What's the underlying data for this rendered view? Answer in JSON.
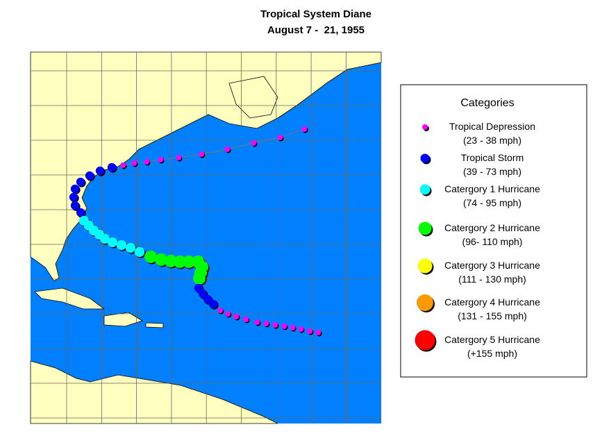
{
  "title": "Tropical System Diane",
  "subtitle": "August 7 -  21, 1955",
  "legend": {
    "title": "Categories",
    "items": [
      {
        "name": "Tropical Depression",
        "range": "(23 - 38 mph)",
        "color": "#ff00ff"
      },
      {
        "name": "Tropical Storm",
        "range": "(39 - 73 mph)",
        "color": "#0000ff"
      },
      {
        "name": "Catergory 1 Hurricane",
        "range": "(74 - 95 mph)",
        "color": "#00ffff"
      },
      {
        "name": "Catergory 2 Hurricane",
        "range": "(96- 110 mph)",
        "color": "#00ff00"
      },
      {
        "name": "Catergory 3 Hurricane",
        "range": "(111 - 130 mph)",
        "color": "#ffff00"
      },
      {
        "name": "Catergory 4 Hurricane",
        "range": "(131 - 155 mph)",
        "color": "#ff9900"
      },
      {
        "name": "Catergory 5 Hurricane",
        "range": "(+155 mph)",
        "color": "#ff0000"
      }
    ]
  }
}
